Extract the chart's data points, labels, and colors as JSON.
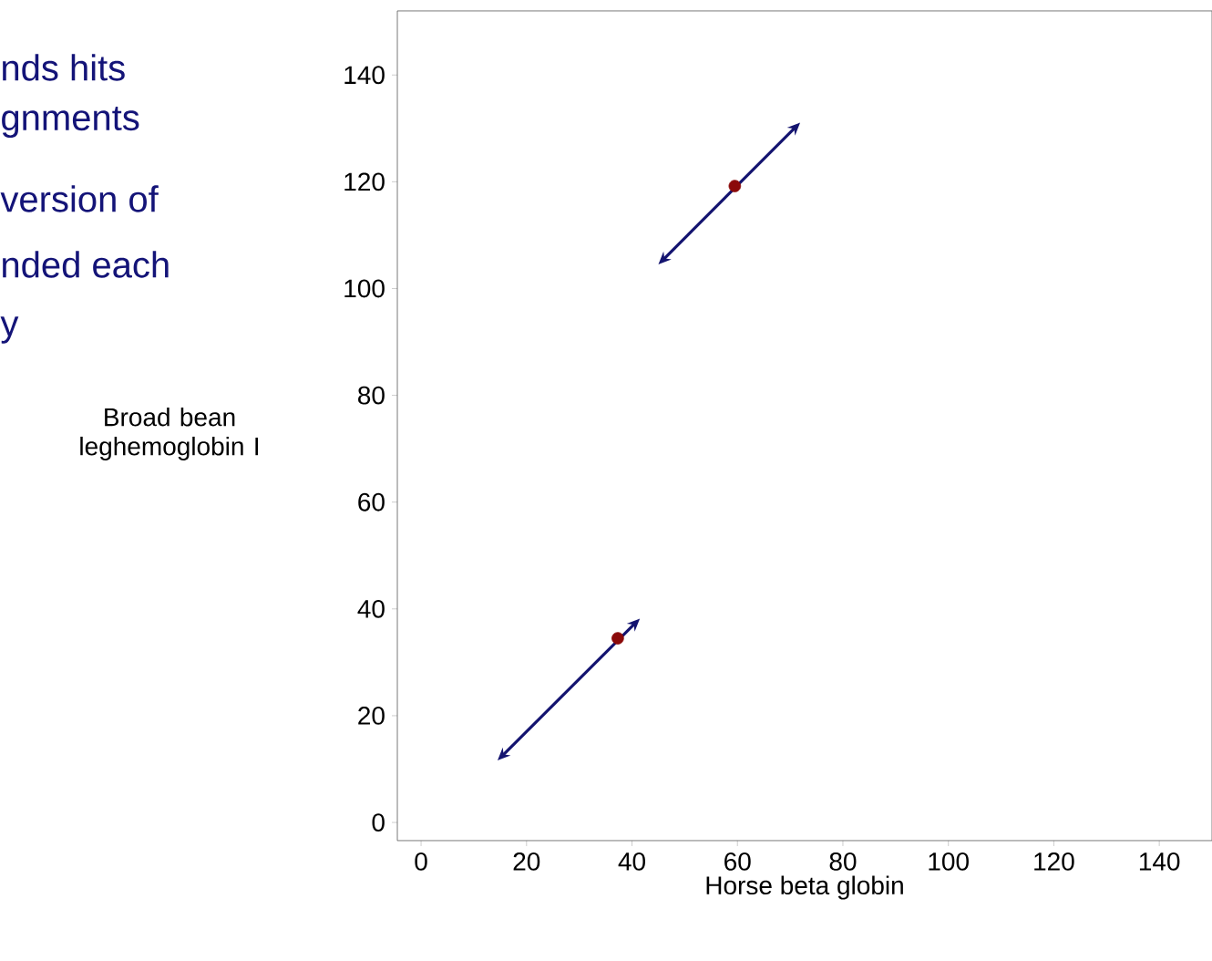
{
  "chart_data": {
    "type": "scatter",
    "xlabel": "Horse beta globin",
    "ylabel": "Broad bean leghemoglobin I",
    "annotations": [
      "nds hits",
      "gnments",
      "version of",
      "nded each",
      "y"
    ],
    "xlim": [
      -4.5,
      150
    ],
    "ylim": [
      -3.4,
      152
    ],
    "xticks": [
      0,
      20,
      40,
      60,
      80,
      100,
      120,
      140
    ],
    "yticks": [
      0,
      20,
      40,
      60,
      80,
      100,
      120,
      140
    ],
    "grid": false,
    "series": [
      {
        "color": "#8b0a0a",
        "x": [
          37.3,
          59.5
        ],
        "values": [
          34.5,
          119.2
        ]
      }
    ]
  }
}
